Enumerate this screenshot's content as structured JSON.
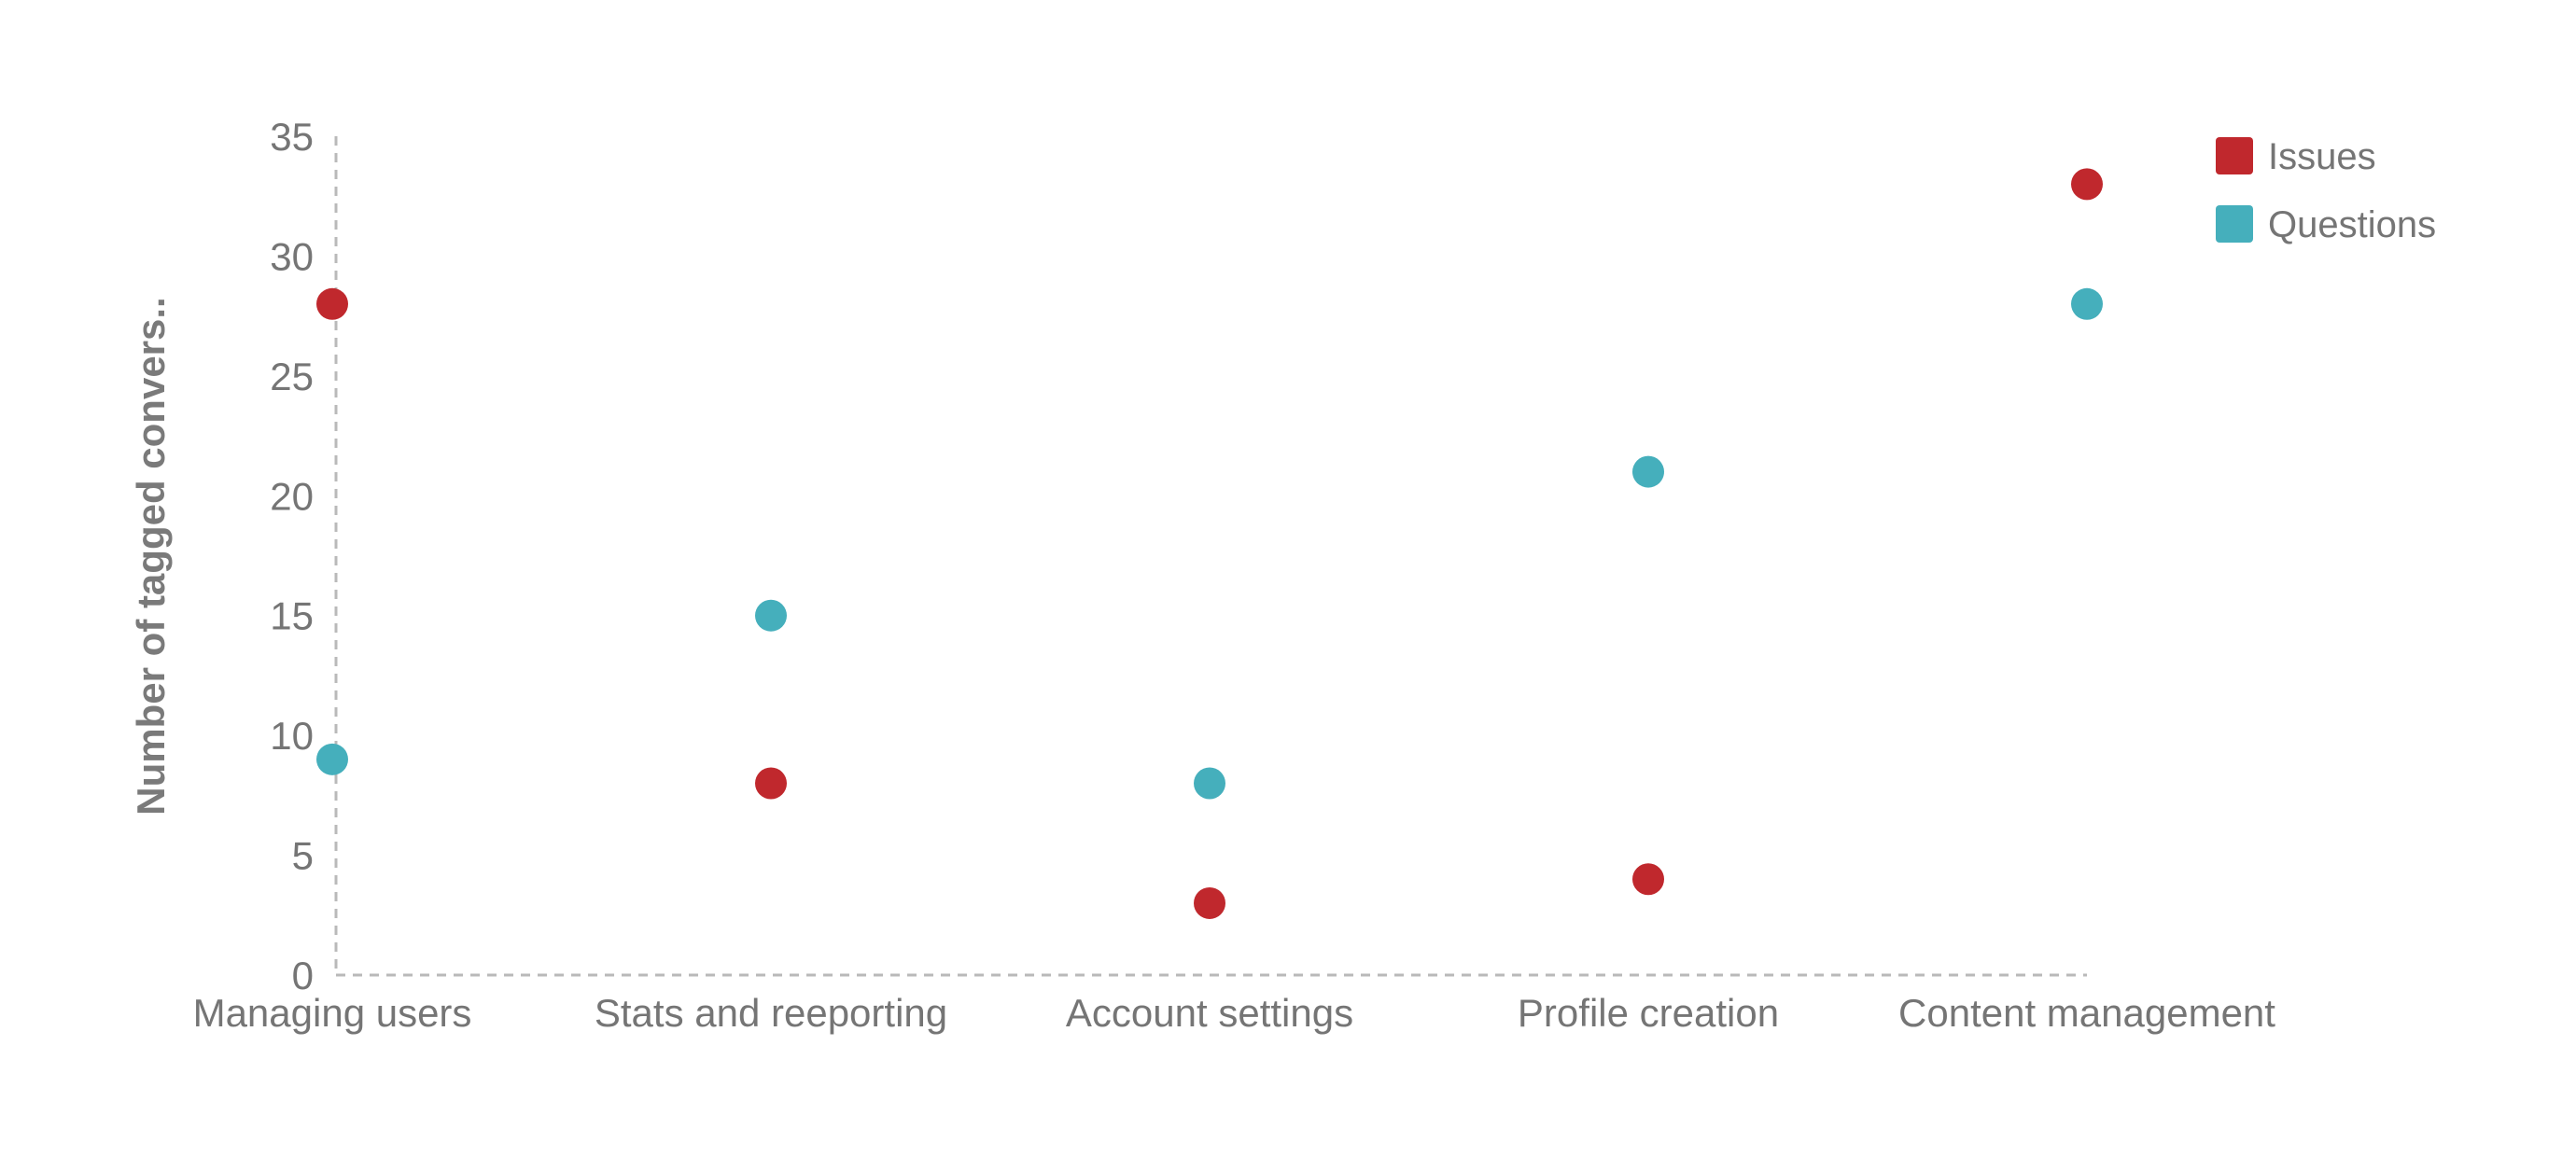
{
  "chart_data": {
    "type": "scatter",
    "categories": [
      "Managing users",
      "Stats and reeporting",
      "Account settings",
      "Profile creation",
      "Content management"
    ],
    "series": [
      {
        "name": "Issues",
        "color": "#c0282d",
        "values": [
          28,
          8,
          3,
          4,
          33
        ]
      },
      {
        "name": "Questions",
        "color": "#45afbc",
        "values": [
          9,
          15,
          8,
          21,
          28
        ]
      }
    ],
    "ylabel": "Number of tagged convers..",
    "ylim": [
      0,
      35
    ],
    "yticks": [
      0,
      5,
      10,
      15,
      20,
      25,
      30,
      35
    ],
    "grid": false,
    "legend_position": "top-right"
  }
}
